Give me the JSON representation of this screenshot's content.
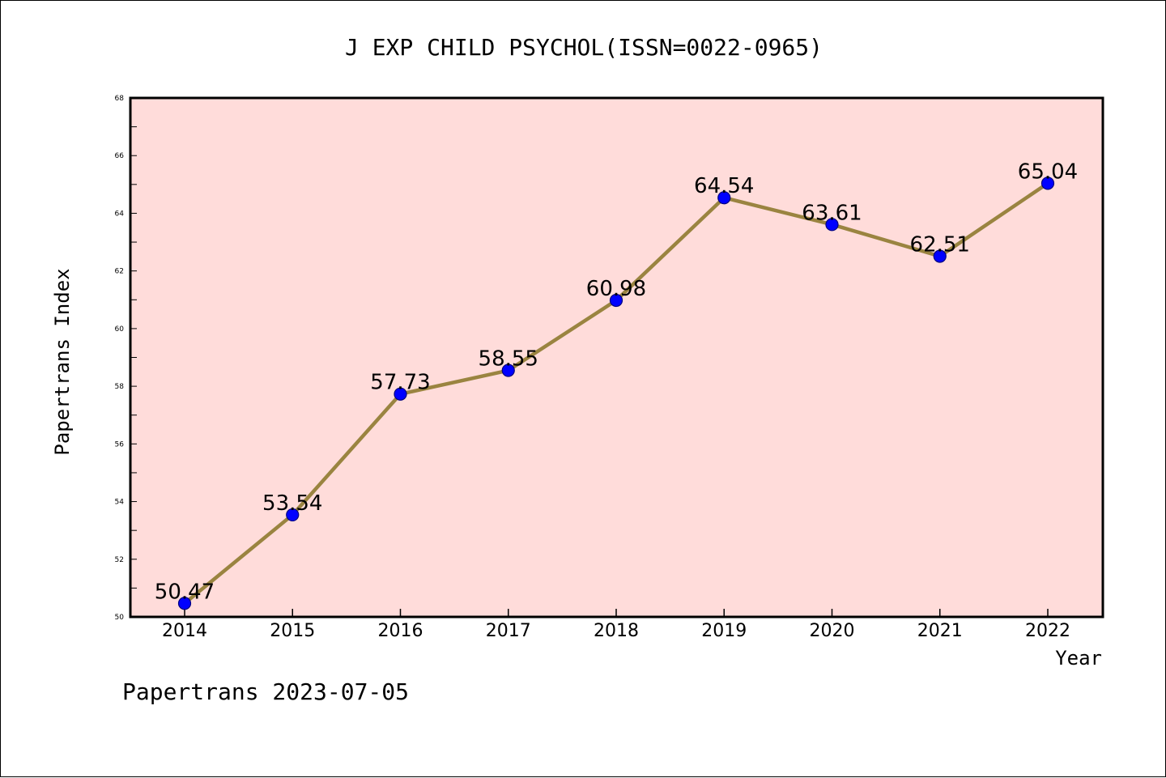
{
  "chart_data": {
    "type": "line",
    "title": "J EXP CHILD PSYCHOL(ISSN=0022-0965)",
    "xlabel": "Year",
    "ylabel": "Papertrans Index",
    "x": [
      "2014",
      "2015",
      "2016",
      "2017",
      "2018",
      "2019",
      "2020",
      "2021",
      "2022"
    ],
    "values": [
      50.47,
      53.54,
      57.73,
      58.55,
      60.98,
      64.54,
      63.61,
      62.51,
      65.04
    ],
    "data_labels": [
      "50.47",
      "53.54",
      "57.73",
      "58.55",
      "60.98",
      "64.54",
      "63.61",
      "62.51",
      "65.04"
    ],
    "ylim": [
      50,
      68
    ],
    "yticks": [
      50,
      52,
      54,
      56,
      58,
      60,
      62,
      64,
      66,
      68
    ],
    "grid": false,
    "legend": "none",
    "colors": {
      "plot_background": "#ffdcda",
      "line": "#9a8440",
      "marker_fill": "#0000ff",
      "marker_edge": "#000080"
    }
  },
  "footer": "Papertrans 2023-07-05"
}
